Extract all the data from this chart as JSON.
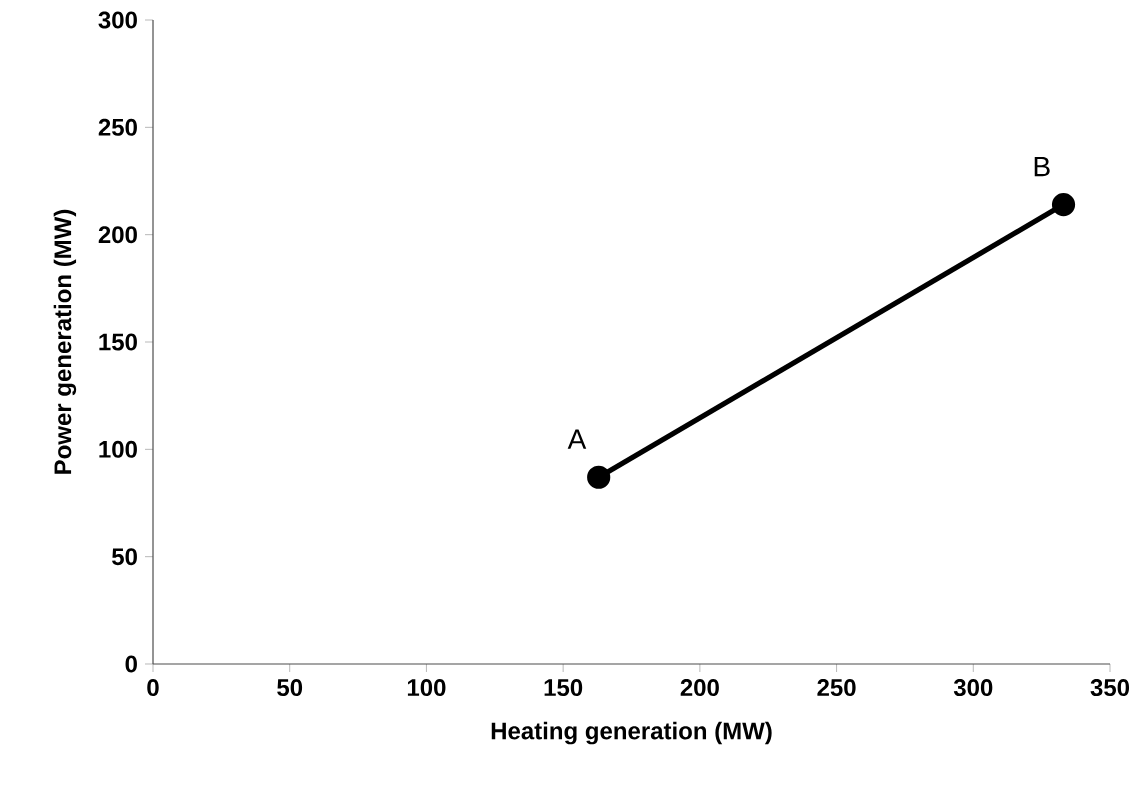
{
  "chart_data": {
    "type": "line",
    "xlabel": "Heating generation (MW)",
    "ylabel": "Power generation (MW)",
    "x": [
      163,
      333
    ],
    "series": [
      {
        "color": "#000000",
        "values": [
          87,
          214
        ]
      }
    ],
    "xlim": [
      0,
      350
    ],
    "xticks": [
      0,
      50,
      100,
      150,
      200,
      250,
      300,
      350
    ],
    "ylim": [
      0,
      300
    ],
    "yticks": [
      0,
      50,
      100,
      150,
      200,
      250,
      300
    ],
    "marker": "circle",
    "line_style": "solid",
    "annotations": [
      {
        "text": "A",
        "x": 163,
        "y": 87
      },
      {
        "text": "B",
        "x": 333,
        "y": 214
      }
    ]
  }
}
